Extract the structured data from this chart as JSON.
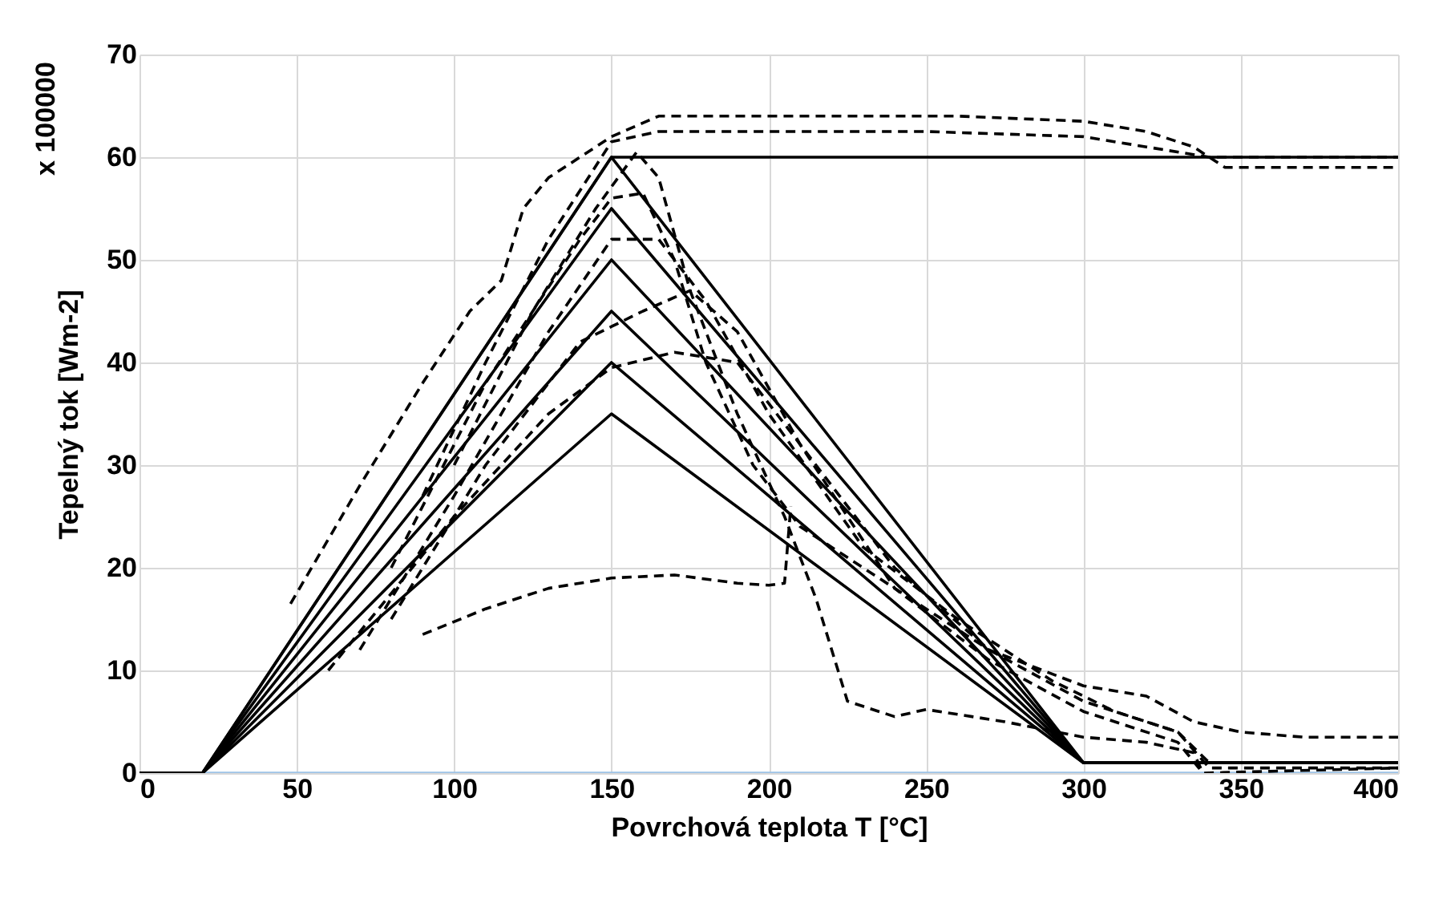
{
  "chart_data": {
    "type": "line",
    "xlabel": "Povrchová teplota T [°C]",
    "ylabel": "Tepelný tok [Wm-2]",
    "annotations": [
      "x 100000"
    ],
    "xlim": [
      0,
      400
    ],
    "xticks": [
      0,
      50,
      100,
      150,
      200,
      250,
      300,
      350,
      400
    ],
    "ylim": [
      0,
      70
    ],
    "yticks": [
      0,
      10,
      20,
      30,
      40,
      50,
      60,
      70
    ],
    "grid": true,
    "series": [
      {
        "color": "#9dc3e6",
        "line_style": "solid",
        "x": [
          20,
          400
        ],
        "values": [
          0,
          0
        ]
      },
      {
        "color": "#000000",
        "line_style": "solid",
        "x": [
          0,
          20,
          150,
          300,
          400
        ],
        "values": [
          0,
          0,
          35,
          1,
          1
        ]
      },
      {
        "color": "#000000",
        "line_style": "solid",
        "x": [
          0,
          20,
          150,
          300,
          400
        ],
        "values": [
          0,
          0,
          40,
          1,
          1
        ]
      },
      {
        "color": "#000000",
        "line_style": "solid",
        "x": [
          0,
          20,
          150,
          300,
          400
        ],
        "values": [
          0,
          0,
          45,
          1,
          1
        ]
      },
      {
        "color": "#000000",
        "line_style": "solid",
        "x": [
          0,
          20,
          150,
          300,
          400
        ],
        "values": [
          0,
          0,
          50,
          1,
          1
        ]
      },
      {
        "color": "#000000",
        "line_style": "solid",
        "x": [
          0,
          20,
          150,
          300,
          400
        ],
        "values": [
          0,
          0,
          55,
          1,
          1
        ]
      },
      {
        "color": "#000000",
        "line_style": "solid",
        "x": [
          0,
          20,
          150,
          300,
          400
        ],
        "values": [
          0,
          0,
          60,
          1,
          1
        ]
      },
      {
        "color": "#000000",
        "line_style": "solid",
        "x": [
          0,
          20,
          150,
          400
        ],
        "values": [
          0,
          0,
          60,
          60
        ]
      },
      {
        "color": "#000000",
        "line_style": "dashed",
        "x": [
          48,
          70,
          90,
          105,
          115,
          122,
          130,
          140,
          150,
          165,
          200,
          260,
          300,
          320,
          335,
          345,
          400
        ],
        "values": [
          16.5,
          28,
          38,
          45,
          48,
          55,
          58,
          60,
          62,
          64,
          64,
          64,
          63.5,
          62.5,
          61,
          59,
          59
        ]
      },
      {
        "color": "#000000",
        "line_style": "dashed",
        "x": [
          90,
          110,
          130,
          150,
          165,
          200,
          250,
          300,
          320,
          340,
          400
        ],
        "values": [
          27,
          40,
          52,
          61.5,
          62.5,
          62.5,
          62.5,
          62,
          61,
          60,
          60
        ]
      },
      {
        "color": "#000000",
        "line_style": "dashed",
        "x": [
          100,
          125,
          145,
          158,
          165,
          175,
          190,
          205,
          215,
          225,
          230,
          240,
          250,
          275,
          300,
          320,
          335,
          338
        ],
        "values": [
          30,
          45,
          55,
          60.5,
          58,
          47,
          35,
          25,
          17,
          7,
          6.5,
          5.5,
          6.2,
          5,
          3.5,
          3,
          2,
          0
        ]
      },
      {
        "color": "#000000",
        "line_style": "dashed",
        "x": [
          80,
          110,
          140,
          150,
          160,
          170,
          180,
          195,
          210,
          240,
          270,
          300,
          320,
          335,
          350,
          370,
          400
        ],
        "values": [
          20,
          38,
          52,
          56,
          56.5,
          50,
          40,
          30,
          24,
          18,
          12,
          8.5,
          7.5,
          5,
          4,
          3.5,
          3.5
        ]
      },
      {
        "color": "#000000",
        "line_style": "dashed",
        "x": [
          70,
          100,
          130,
          150,
          165,
          180,
          200,
          230,
          260,
          290,
          310,
          330,
          340,
          400
        ],
        "values": [
          12,
          27,
          43,
          52,
          52,
          46,
          35,
          22,
          15,
          9,
          6,
          4,
          1,
          1
        ]
      },
      {
        "color": "#000000",
        "line_style": "dashed",
        "x": [
          80,
          110,
          140,
          160,
          175,
          190,
          210,
          240,
          270,
          300,
          330,
          340,
          400
        ],
        "values": [
          15,
          30,
          42,
          45,
          47,
          43,
          32,
          20,
          12,
          7,
          4,
          0.5,
          0.5
        ]
      },
      {
        "color": "#000000",
        "line_style": "dashed",
        "x": [
          60,
          100,
          130,
          150,
          170,
          190,
          210,
          240,
          270,
          300,
          330,
          338,
          400
        ],
        "values": [
          10,
          25,
          35,
          39.5,
          41,
          40,
          32,
          18,
          11,
          6,
          3,
          0,
          0.5
        ]
      },
      {
        "color": "#000000",
        "line_style": "dashed",
        "x": [
          90,
          110,
          130,
          150,
          170,
          190,
          200,
          205,
          207
        ],
        "values": [
          13.5,
          16,
          18,
          19,
          19.3,
          18.5,
          18.3,
          18.5,
          26
        ]
      }
    ]
  }
}
